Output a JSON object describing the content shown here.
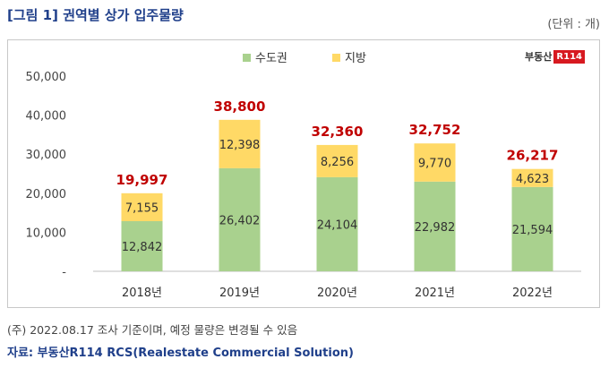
{
  "header": {
    "title": "[그림 1] 권역별 상가 입주물량",
    "unit": "(단위 : 개)"
  },
  "logo": {
    "text": "부동산",
    "badge": "R114"
  },
  "chart_data": {
    "type": "bar",
    "stacked": true,
    "categories": [
      "2018년",
      "2019년",
      "2020년",
      "2021년",
      "2022년"
    ],
    "series": [
      {
        "name": "수도권",
        "values": [
          12842,
          26402,
          24104,
          22982,
          21594
        ],
        "color": "#a9d18e"
      },
      {
        "name": "지방",
        "values": [
          7155,
          12398,
          8256,
          9770,
          4623
        ],
        "color": "#ffd966"
      }
    ],
    "totals": [
      19997,
      38800,
      32360,
      32752,
      26217
    ],
    "total_color": "#c00000",
    "ylim": [
      0,
      50000
    ],
    "yticks": [
      "-",
      "10,000",
      "20,000",
      "30,000",
      "40,000",
      "50,000"
    ],
    "legend_position": "top-center",
    "grid": false
  },
  "footer": {
    "note": "(주) 2022.08.17 조사 기준이며, 예정 물량은 변경될 수 있음",
    "source": "자료: 부동산R114 RCS(Realestate Commercial Solution)"
  }
}
